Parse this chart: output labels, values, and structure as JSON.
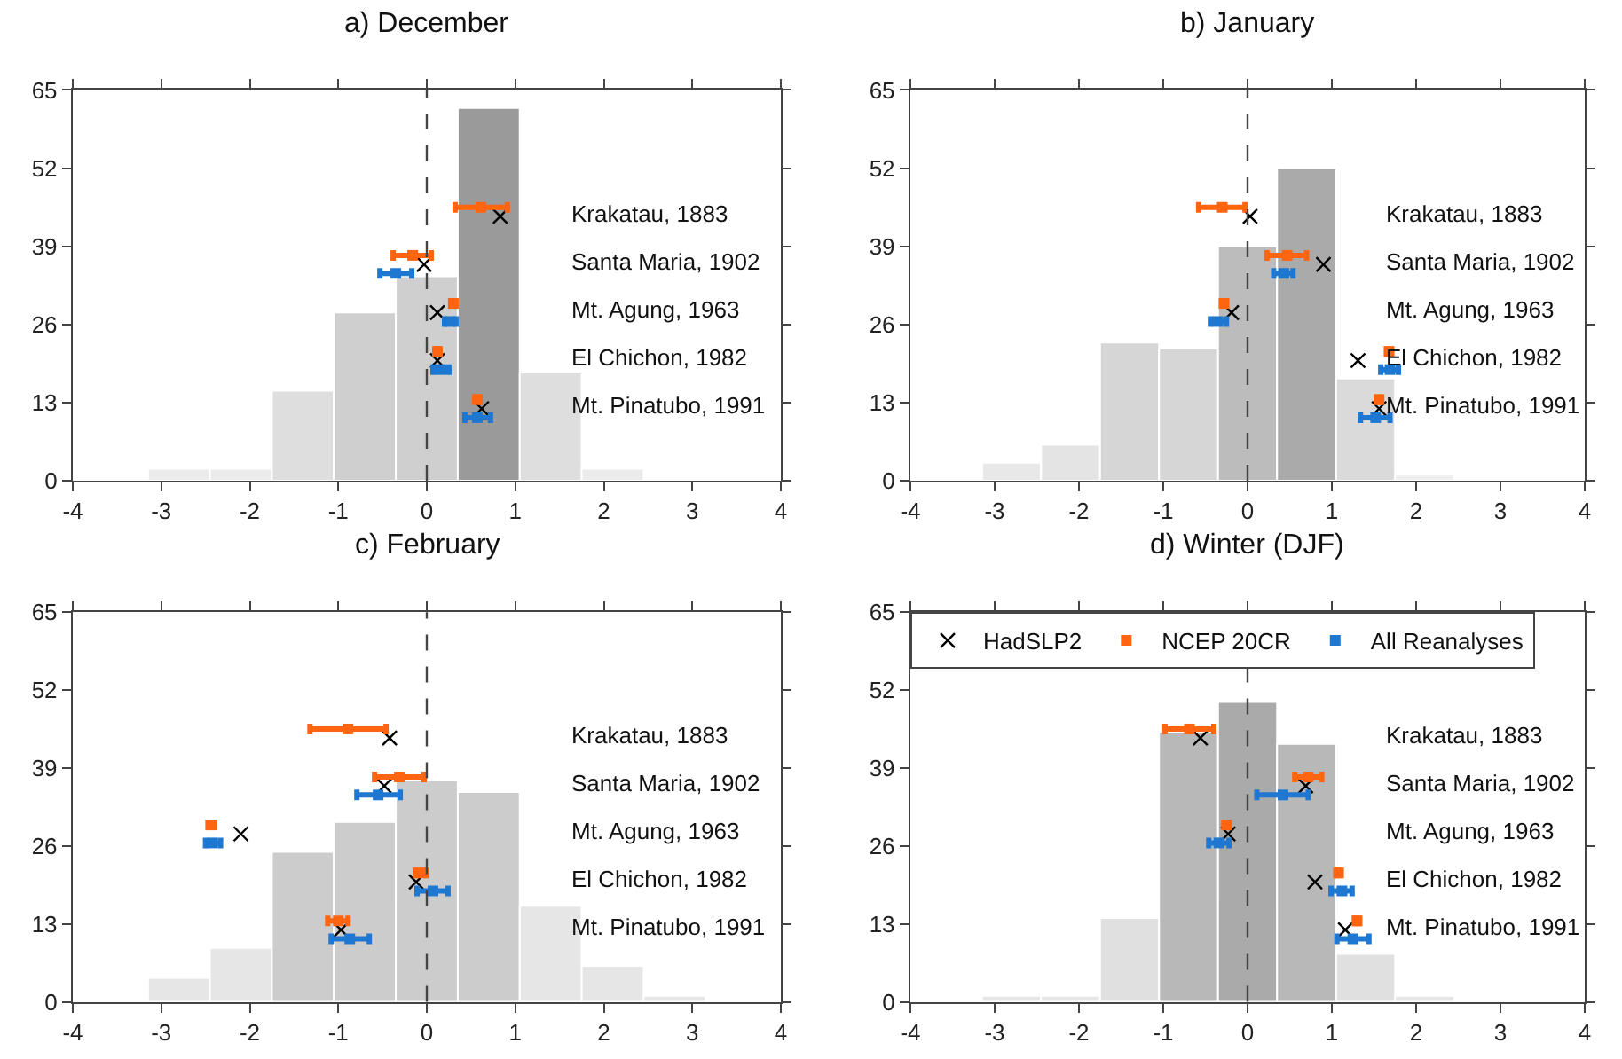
{
  "chart_data": [
    {
      "type": "histogram",
      "title": "a) December",
      "bins": [
        -3.15,
        -2.45,
        -1.75,
        -1.05,
        -0.35,
        0.35,
        1.05,
        1.75,
        2.45
      ],
      "values": [
        2,
        2,
        15,
        28,
        34,
        62,
        18,
        2
      ],
      "colors": [
        "#ebebeb",
        "#ebebeb",
        "#dedede",
        "#cfcfcf",
        "#cfcfcf",
        "#9a9a9a",
        "#dedede",
        "#ebebeb"
      ],
      "xlim": [
        -4,
        4
      ],
      "xticks": [
        -4,
        -3,
        -2,
        -1,
        0,
        1,
        2,
        3,
        4
      ],
      "ylim": [
        0,
        65
      ],
      "yticks": [
        0,
        13,
        26,
        39,
        52,
        65
      ],
      "grid": false,
      "ref_lines": [
        {
          "axis": "x",
          "value": 0,
          "color": "#444444",
          "line_style": "dashed"
        }
      ],
      "series": [
        {
          "type": "scatter",
          "color": "#000000",
          "marker": "cross",
          "x": [
            0.83,
            -0.03,
            0.12,
            0.12,
            0.62
          ],
          "values": [
            44,
            36,
            28,
            20,
            12
          ]
        },
        {
          "type": "scatter",
          "color": "#ff6410",
          "x": [
            0.61,
            -0.16,
            0.3,
            0.12,
            0.57
          ],
          "values": [
            45.5,
            37.5,
            29.5,
            21.5,
            13.5
          ],
          "xerrors": [
            [
              0.32,
              0.91
            ],
            [
              -0.38,
              0.05
            ],
            [
              0.27,
              0.32
            ],
            [
              0.1,
              0.14
            ],
            [
              0.55,
              0.6
            ]
          ]
        },
        {
          "type": "scatter",
          "color": "#1e78d2",
          "x": [
            -0.35,
            0.26,
            0.16,
            0.57
          ],
          "values": [
            34.5,
            26.5,
            18.5,
            10.5
          ],
          "xerrors": [
            [
              -0.53,
              -0.17
            ],
            [
              0.2,
              0.33
            ],
            [
              0.07,
              0.25
            ],
            [
              0.43,
              0.72
            ]
          ]
        }
      ],
      "annotations": [
        "Krakatau, 1883",
        "Santa Maria, 1902",
        "Mt. Agung, 1963",
        "El Chichon, 1982",
        "Mt. Pinatubo, 1991"
      ]
    },
    {
      "type": "histogram",
      "title": "b) January",
      "bins": [
        -3.15,
        -2.45,
        -1.75,
        -1.05,
        -0.35,
        0.35,
        1.05,
        1.75,
        2.45
      ],
      "values": [
        3,
        6,
        23,
        22,
        39,
        52,
        17,
        1
      ],
      "colors": [
        "#e8e8e8",
        "#e4e4e4",
        "#d6d6d6",
        "#d6d6d6",
        "#bcbcbc",
        "#aaaaaa",
        "#dadada",
        "#eeeeee"
      ],
      "xlim": [
        -4,
        4
      ],
      "xticks": [
        -4,
        -3,
        -2,
        -1,
        0,
        1,
        2,
        3,
        4
      ],
      "ylim": [
        0,
        65
      ],
      "yticks": [
        0,
        13,
        26,
        39,
        52,
        65
      ],
      "grid": false,
      "ref_lines": [
        {
          "axis": "x",
          "value": 0,
          "color": "#444444",
          "line_style": "dashed"
        }
      ],
      "series": [
        {
          "type": "scatter",
          "color": "#000000",
          "marker": "cross",
          "x": [
            0.03,
            0.9,
            -0.19,
            1.31,
            1.56
          ],
          "values": [
            44,
            36,
            28,
            20,
            12
          ]
        },
        {
          "type": "scatter",
          "color": "#ff6410",
          "x": [
            -0.3,
            0.47,
            -0.28,
            1.68,
            1.56
          ],
          "values": [
            45.5,
            37.5,
            29.5,
            21.5,
            13.5
          ],
          "xerrors": [
            [
              -0.58,
              -0.03
            ],
            [
              0.23,
              0.7
            ],
            [
              -0.3,
              -0.25
            ],
            [
              1.65,
              1.7
            ],
            [
              1.53,
              1.58
            ]
          ]
        },
        {
          "type": "scatter",
          "color": "#1e78d2",
          "x": [
            0.43,
            -0.35,
            1.69,
            1.52
          ],
          "values": [
            34.5,
            26.5,
            18.5,
            10.5
          ],
          "xerrors": [
            [
              0.31,
              0.54
            ],
            [
              -0.44,
              -0.25
            ],
            [
              1.58,
              1.79
            ],
            [
              1.34,
              1.69
            ]
          ]
        }
      ],
      "annotations": [
        "Krakatau, 1883",
        "Santa Maria, 1902",
        "Mt. Agung, 1963",
        "El Chichon, 1982",
        "Mt. Pinatubo, 1991"
      ]
    },
    {
      "type": "histogram",
      "title": "c) February",
      "bins": [
        -3.15,
        -2.45,
        -1.75,
        -1.05,
        -0.35,
        0.35,
        1.05,
        1.75,
        2.45,
        3.15
      ],
      "values": [
        4,
        9,
        25,
        30,
        37,
        35,
        16,
        6,
        1
      ],
      "colors": [
        "#e6e6e6",
        "#e6e6e6",
        "#cccccc",
        "#cccccc",
        "#cccccc",
        "#cccccc",
        "#e6e6e6",
        "#e6e6e6",
        "#e6e6e6"
      ],
      "xlim": [
        -4,
        4
      ],
      "xticks": [
        -4,
        -3,
        -2,
        -1,
        0,
        1,
        2,
        3,
        4
      ],
      "ylim": [
        0,
        65
      ],
      "yticks": [
        0,
        13,
        26,
        39,
        52,
        65
      ],
      "grid": false,
      "ref_lines": [
        {
          "axis": "x",
          "value": 0,
          "color": "#444444",
          "line_style": "dashed"
        }
      ],
      "series": [
        {
          "type": "scatter",
          "color": "#000000",
          "marker": "cross",
          "x": [
            -0.42,
            -0.48,
            -2.1,
            -0.12,
            -0.97
          ],
          "values": [
            44,
            36,
            28,
            20,
            12
          ]
        },
        {
          "type": "scatter",
          "color": "#ff6410",
          "x": [
            -0.89,
            -0.31,
            -2.44,
            -0.07,
            -1.0
          ],
          "values": [
            45.5,
            37.5,
            29.5,
            21.5,
            13.5
          ],
          "xerrors": [
            [
              -1.32,
              -0.46
            ],
            [
              -0.59,
              -0.03
            ],
            [
              -2.47,
              -2.4
            ],
            [
              -0.13,
              0.0
            ],
            [
              -1.12,
              -0.89
            ]
          ]
        },
        {
          "type": "scatter",
          "color": "#1e78d2",
          "x": [
            -0.55,
            -2.42,
            0.07,
            -0.87
          ],
          "values": [
            34.5,
            26.5,
            18.5,
            10.5
          ],
          "xerrors": [
            [
              -0.79,
              -0.3
            ],
            [
              -2.5,
              -2.33
            ],
            [
              -0.11,
              0.24
            ],
            [
              -1.08,
              -0.65
            ]
          ]
        }
      ],
      "annotations": [
        "Krakatau, 1883",
        "Santa Maria, 1902",
        "Mt. Agung, 1963",
        "El Chichon, 1982",
        "Mt. Pinatubo, 1991"
      ]
    },
    {
      "type": "histogram",
      "title": "d) Winter (DJF)",
      "bins": [
        -3.15,
        -2.45,
        -1.75,
        -1.05,
        -0.35,
        0.35,
        1.05,
        1.75,
        2.45
      ],
      "values": [
        1,
        1,
        14,
        45,
        50,
        43,
        8,
        1
      ],
      "colors": [
        "#e6e6e6",
        "#e6e6e6",
        "#e0e0e0",
        "#b8b8b8",
        "#aaaaaa",
        "#b8b8b8",
        "#e0e0e0",
        "#e6e6e6"
      ],
      "xlim": [
        -4,
        4
      ],
      "xticks": [
        -4,
        -3,
        -2,
        -1,
        0,
        1,
        2,
        3,
        4
      ],
      "ylim": [
        0,
        65
      ],
      "yticks": [
        0,
        13,
        26,
        39,
        52,
        65
      ],
      "grid": false,
      "legend": "top",
      "ref_lines": [
        {
          "axis": "x",
          "value": 0,
          "color": "#444444",
          "line_style": "dashed"
        }
      ],
      "series": [
        {
          "type": "scatter",
          "name": "HadSLP2",
          "color": "#000000",
          "marker": "cross",
          "x": [
            -0.56,
            0.69,
            -0.23,
            0.8,
            1.16
          ],
          "values": [
            44,
            36,
            28,
            20,
            12
          ]
        },
        {
          "type": "scatter",
          "name": "NCEP 20CR",
          "color": "#ff6410",
          "x": [
            -0.69,
            0.72,
            -0.25,
            1.08,
            1.3
          ],
          "values": [
            45.5,
            37.5,
            29.5,
            21.5,
            13.5
          ],
          "xerrors": [
            [
              -0.98,
              -0.4
            ],
            [
              0.56,
              0.88
            ],
            [
              -0.27,
              -0.22
            ],
            [
              1.05,
              1.1
            ],
            [
              1.27,
              1.32
            ]
          ]
        },
        {
          "type": "scatter",
          "name": "All Reanalyses",
          "color": "#1e78d2",
          "x": [
            0.42,
            -0.34,
            1.12,
            1.25
          ],
          "values": [
            34.5,
            26.5,
            18.5,
            10.5
          ],
          "xerrors": [
            [
              0.11,
              0.72
            ],
            [
              -0.46,
              -0.22
            ],
            [
              0.99,
              1.24
            ],
            [
              1.06,
              1.44
            ]
          ]
        }
      ],
      "annotations": [
        "Krakatau, 1883",
        "Santa Maria, 1902",
        "Mt. Agung, 1963",
        "El Chichon, 1982",
        "Mt. Pinatubo, 1991"
      ]
    }
  ]
}
